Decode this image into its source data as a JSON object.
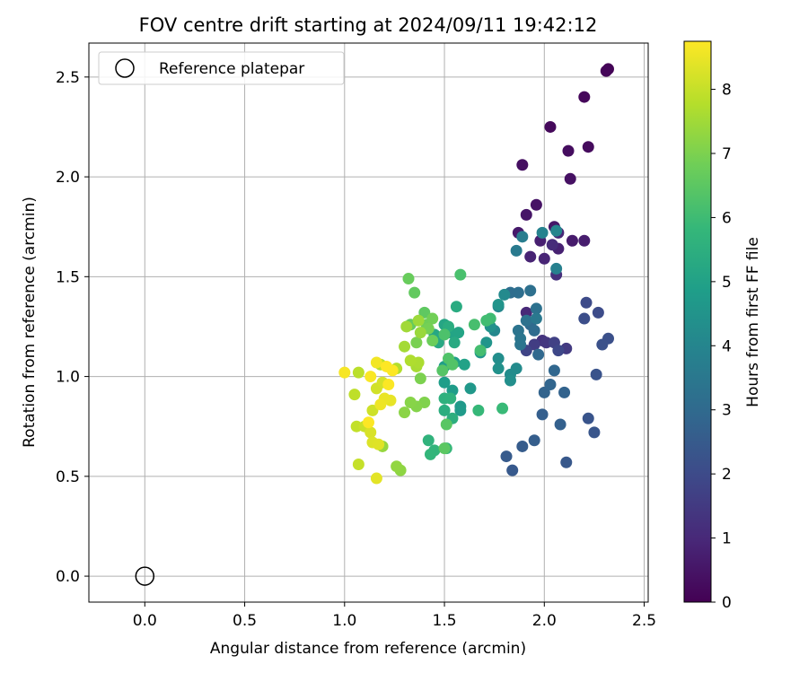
{
  "chart_data": {
    "type": "scatter",
    "title": "FOV centre drift starting at 2024/09/11 19:42:12",
    "xlabel": "Angular distance from reference (arcmin)",
    "ylabel": "Rotation from reference (arcmin)",
    "xlim": [
      -0.28,
      2.52
    ],
    "ylim": [
      -0.13,
      2.67
    ],
    "xticks": [
      0.0,
      0.5,
      1.0,
      1.5,
      2.0,
      2.5
    ],
    "xtick_labels": [
      "0.0",
      "0.5",
      "1.0",
      "1.5",
      "2.0",
      "2.5"
    ],
    "yticks": [
      0.0,
      0.5,
      1.0,
      1.5,
      2.0,
      2.5
    ],
    "ytick_labels": [
      "0.0",
      "0.5",
      "1.0",
      "1.5",
      "2.0",
      "2.5"
    ],
    "grid": true,
    "legend": {
      "placement": "top-left",
      "entries": [
        "Reference platepar"
      ]
    },
    "reference_point": {
      "name": "Reference platepar",
      "x": 0.0,
      "y": 0.0,
      "marker": "open-circle"
    },
    "colorbar": {
      "label": "Hours from first FF file",
      "min": 0,
      "max": 8.75,
      "ticks": [
        0,
        1,
        2,
        3,
        4,
        5,
        6,
        7,
        8
      ],
      "tick_labels": [
        "0",
        "1",
        "2",
        "3",
        "4",
        "5",
        "6",
        "7",
        "8"
      ],
      "colormap": "viridis"
    },
    "colormap_stops": [
      "#440154",
      "#482878",
      "#3e4989",
      "#31688e",
      "#26828e",
      "#1f9e89",
      "#35b779",
      "#6ece58",
      "#b5de2b",
      "#fde725"
    ],
    "points": [
      [
        2.32,
        2.54,
        0.05
      ],
      [
        2.31,
        2.53,
        0.1
      ],
      [
        2.2,
        2.4,
        0.15
      ],
      [
        2.03,
        2.25,
        0.2
      ],
      [
        2.22,
        2.15,
        0.25
      ],
      [
        2.12,
        2.13,
        0.3
      ],
      [
        1.89,
        2.06,
        0.35
      ],
      [
        2.13,
        1.99,
        0.4
      ],
      [
        1.96,
        1.86,
        0.45
      ],
      [
        1.91,
        1.81,
        0.5
      ],
      [
        2.05,
        1.75,
        0.55
      ],
      [
        1.87,
        1.72,
        0.6
      ],
      [
        2.14,
        1.68,
        0.65
      ],
      [
        2.2,
        1.68,
        0.7
      ],
      [
        1.98,
        1.68,
        0.75
      ],
      [
        2.07,
        1.64,
        0.8
      ],
      [
        1.93,
        1.6,
        0.85
      ],
      [
        2.0,
        1.59,
        0.9
      ],
      [
        2.07,
        1.72,
        0.95
      ],
      [
        1.91,
        1.32,
        1.0
      ],
      [
        2.04,
        1.66,
        1.1
      ],
      [
        2.06,
        1.51,
        1.2
      ],
      [
        1.99,
        1.18,
        1.3
      ],
      [
        2.01,
        1.17,
        1.4
      ],
      [
        2.11,
        1.14,
        1.5
      ],
      [
        1.95,
        1.16,
        1.6
      ],
      [
        2.05,
        1.17,
        1.7
      ],
      [
        1.91,
        1.13,
        1.8
      ],
      [
        2.07,
        1.13,
        1.9
      ],
      [
        2.21,
        1.37,
        2.0
      ],
      [
        2.27,
        1.32,
        2.05
      ],
      [
        2.2,
        1.29,
        2.1
      ],
      [
        2.32,
        1.19,
        2.15
      ],
      [
        2.29,
        1.16,
        2.2
      ],
      [
        2.26,
        1.01,
        2.25
      ],
      [
        2.22,
        0.79,
        2.3
      ],
      [
        2.25,
        0.72,
        2.35
      ],
      [
        2.11,
        0.57,
        2.4
      ],
      [
        1.84,
        0.53,
        2.45
      ],
      [
        1.81,
        0.6,
        2.5
      ],
      [
        1.89,
        0.65,
        2.55
      ],
      [
        1.95,
        0.68,
        2.6
      ],
      [
        1.99,
        0.81,
        2.65
      ],
      [
        2.08,
        0.76,
        2.7
      ],
      [
        2.1,
        0.92,
        2.75
      ],
      [
        2.0,
        0.92,
        2.8
      ],
      [
        2.03,
        0.96,
        2.85
      ],
      [
        2.05,
        1.03,
        2.9
      ],
      [
        1.97,
        1.11,
        2.95
      ],
      [
        1.93,
        1.26,
        3.0
      ],
      [
        1.95,
        1.23,
        3.05
      ],
      [
        1.83,
        1.42,
        3.1
      ],
      [
        1.87,
        1.42,
        3.15
      ],
      [
        1.93,
        1.43,
        3.2
      ],
      [
        1.96,
        1.34,
        3.25
      ],
      [
        1.91,
        1.28,
        3.3
      ],
      [
        1.87,
        1.23,
        3.35
      ],
      [
        1.88,
        1.16,
        3.4
      ],
      [
        1.88,
        1.19,
        3.45
      ],
      [
        1.96,
        1.29,
        3.5
      ],
      [
        1.86,
        1.63,
        3.6
      ],
      [
        1.89,
        1.7,
        3.7
      ],
      [
        2.06,
        1.54,
        3.8
      ],
      [
        1.99,
        1.72,
        3.9
      ],
      [
        2.06,
        1.73,
        4.0
      ],
      [
        1.77,
        1.35,
        4.05
      ],
      [
        1.75,
        1.23,
        4.1
      ],
      [
        1.8,
        1.41,
        4.15
      ],
      [
        1.86,
        1.04,
        4.2
      ],
      [
        1.83,
        1.01,
        4.25
      ],
      [
        1.77,
        1.09,
        4.3
      ],
      [
        1.83,
        0.98,
        4.35
      ],
      [
        1.77,
        1.04,
        4.4
      ],
      [
        1.73,
        1.25,
        4.45
      ],
      [
        1.77,
        1.36,
        4.5
      ],
      [
        1.71,
        1.17,
        4.55
      ],
      [
        1.68,
        1.12,
        4.6
      ],
      [
        1.63,
        0.94,
        4.65
      ],
      [
        1.58,
        0.85,
        4.7
      ],
      [
        1.58,
        0.83,
        4.75
      ],
      [
        1.54,
        0.93,
        4.8
      ],
      [
        1.5,
        0.97,
        4.85
      ],
      [
        1.5,
        1.05,
        4.9
      ],
      [
        1.55,
        1.07,
        4.95
      ],
      [
        1.6,
        1.06,
        5.0
      ],
      [
        1.53,
        1.22,
        5.05
      ],
      [
        1.57,
        1.22,
        5.1
      ],
      [
        1.5,
        1.26,
        5.15
      ],
      [
        1.45,
        1.21,
        5.2
      ],
      [
        1.47,
        1.17,
        5.25
      ],
      [
        1.55,
        1.17,
        5.3
      ],
      [
        1.56,
        1.35,
        5.35
      ],
      [
        1.52,
        1.25,
        5.4
      ],
      [
        1.5,
        0.83,
        5.45
      ],
      [
        1.54,
        0.79,
        5.5
      ],
      [
        1.5,
        0.89,
        5.55
      ],
      [
        1.53,
        0.89,
        5.6
      ],
      [
        1.42,
        0.68,
        5.65
      ],
      [
        1.45,
        0.63,
        5.7
      ],
      [
        1.43,
        0.61,
        5.75
      ],
      [
        1.51,
        0.64,
        5.8
      ],
      [
        1.67,
        0.83,
        5.85
      ],
      [
        1.79,
        0.84,
        5.9
      ],
      [
        1.73,
        1.29,
        6.0
      ],
      [
        1.71,
        1.28,
        6.05
      ],
      [
        1.68,
        1.13,
        6.1
      ],
      [
        1.65,
        1.26,
        6.15
      ],
      [
        1.58,
        1.51,
        6.2
      ],
      [
        1.5,
        1.21,
        6.25
      ],
      [
        1.52,
        1.09,
        6.3
      ],
      [
        1.54,
        1.06,
        6.35
      ],
      [
        1.49,
        1.03,
        6.4
      ],
      [
        1.51,
        0.76,
        6.45
      ],
      [
        1.5,
        0.64,
        6.5
      ],
      [
        1.4,
        1.32,
        6.55
      ],
      [
        1.35,
        1.42,
        6.6
      ],
      [
        1.33,
        1.26,
        6.65
      ],
      [
        1.32,
        1.49,
        6.7
      ],
      [
        1.44,
        1.18,
        6.75
      ],
      [
        1.41,
        1.26,
        6.8
      ],
      [
        1.44,
        1.29,
        6.85
      ],
      [
        1.42,
        1.24,
        6.9
      ],
      [
        1.36,
        1.17,
        6.95
      ],
      [
        1.38,
        0.99,
        7.0
      ],
      [
        1.4,
        0.87,
        7.05
      ],
      [
        1.36,
        0.85,
        7.1
      ],
      [
        1.33,
        0.87,
        7.15
      ],
      [
        1.3,
        0.82,
        7.2
      ],
      [
        1.28,
        0.53,
        7.25
      ],
      [
        1.26,
        0.55,
        7.3
      ],
      [
        1.19,
        0.65,
        7.35
      ],
      [
        1.38,
        1.22,
        7.4
      ],
      [
        1.37,
        1.28,
        7.45
      ],
      [
        1.31,
        1.25,
        7.5
      ],
      [
        1.3,
        1.15,
        7.55
      ],
      [
        1.36,
        1.05,
        7.6
      ],
      [
        1.37,
        1.07,
        7.65
      ],
      [
        1.33,
        1.08,
        7.7
      ],
      [
        1.26,
        1.04,
        7.75
      ],
      [
        1.18,
        1.06,
        7.8
      ],
      [
        1.07,
        1.02,
        7.85
      ],
      [
        1.05,
        0.91,
        7.9
      ],
      [
        1.06,
        0.75,
        7.95
      ],
      [
        1.07,
        0.56,
        8.0
      ],
      [
        1.1,
        0.75,
        8.05
      ],
      [
        1.14,
        0.83,
        8.1
      ],
      [
        1.16,
        0.94,
        8.15
      ],
      [
        1.19,
        0.97,
        8.2
      ],
      [
        1.13,
        0.72,
        8.25
      ],
      [
        1.14,
        0.67,
        8.3
      ],
      [
        1.17,
        0.66,
        8.35
      ],
      [
        1.16,
        0.49,
        8.4
      ],
      [
        1.23,
        0.88,
        8.45
      ],
      [
        1.2,
        0.89,
        8.5
      ],
      [
        1.18,
        0.86,
        8.55
      ],
      [
        1.16,
        1.07,
        8.6
      ],
      [
        1.0,
        1.02,
        8.65
      ],
      [
        1.13,
        1.0,
        8.7
      ],
      [
        1.22,
        0.96,
        8.72
      ],
      [
        1.12,
        0.77,
        8.74
      ],
      [
        1.24,
        1.03,
        8.74
      ],
      [
        1.21,
        1.05,
        8.75
      ]
    ]
  }
}
